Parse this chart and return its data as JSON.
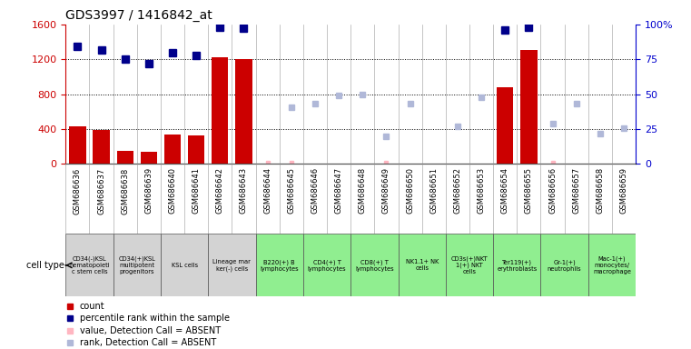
{
  "title": "GDS3997 / 1416842_at",
  "samples": [
    "GSM686636",
    "GSM686637",
    "GSM686638",
    "GSM686639",
    "GSM686640",
    "GSM686641",
    "GSM686642",
    "GSM686643",
    "GSM686644",
    "GSM686645",
    "GSM686646",
    "GSM686647",
    "GSM686648",
    "GSM686649",
    "GSM686650",
    "GSM686651",
    "GSM686652",
    "GSM686653",
    "GSM686654",
    "GSM686655",
    "GSM686656",
    "GSM686657",
    "GSM686658",
    "GSM686659"
  ],
  "counts": [
    430,
    390,
    155,
    145,
    340,
    330,
    1220,
    1205,
    0,
    0,
    0,
    0,
    0,
    0,
    0,
    0,
    0,
    0,
    880,
    1310,
    0,
    0,
    0,
    0
  ],
  "pct_ranks_present": {
    "0": 84,
    "1": 82,
    "2": 75,
    "3": 72,
    "4": 80,
    "5": 78,
    "6": 98,
    "7": 97,
    "18": 96,
    "19": 98
  },
  "absent_ranks": {
    "9": 41,
    "10": 43,
    "11": 49,
    "12": 50,
    "13": 20,
    "14": 43,
    "16": 27,
    "17": 48,
    "20": 29,
    "21": 43,
    "22": 22,
    "23": 26
  },
  "absent_values_idx": [
    8,
    9,
    13,
    20
  ],
  "cell_types": [
    {
      "label": "CD34(-)KSL\nhematopoieti\nc stem cells",
      "color": "#d3d3d3",
      "span": [
        0,
        1
      ]
    },
    {
      "label": "CD34(+)KSL\nmultipotent\nprogenitors",
      "color": "#d3d3d3",
      "span": [
        2,
        3
      ]
    },
    {
      "label": "KSL cells",
      "color": "#d3d3d3",
      "span": [
        4,
        5
      ]
    },
    {
      "label": "Lineage mar\nker(-) cells",
      "color": "#d3d3d3",
      "span": [
        6,
        7
      ]
    },
    {
      "label": "B220(+) B\nlymphocytes",
      "color": "#90ee90",
      "span": [
        8,
        9
      ]
    },
    {
      "label": "CD4(+) T\nlymphocytes",
      "color": "#90ee90",
      "span": [
        10,
        11
      ]
    },
    {
      "label": "CD8(+) T\nlymphocytes",
      "color": "#90ee90",
      "span": [
        12,
        13
      ]
    },
    {
      "label": "NK1.1+ NK\ncells",
      "color": "#90ee90",
      "span": [
        14,
        15
      ]
    },
    {
      "label": "CD3s(+)NKT\n1(+) NKT\ncells",
      "color": "#90ee90",
      "span": [
        16,
        17
      ]
    },
    {
      "label": "Ter119(+)\nerythroblasts",
      "color": "#90ee90",
      "span": [
        18,
        19
      ]
    },
    {
      "label": "Gr-1(+)\nneutrophils",
      "color": "#90ee90",
      "span": [
        20,
        21
      ]
    },
    {
      "label": "Mac-1(+)\nmonocytes/\nmacrophage",
      "color": "#90ee90",
      "span": [
        22,
        23
      ]
    }
  ],
  "bar_color": "#cc0000",
  "rank_color": "#00008b",
  "absent_value_color": "#ffb6c1",
  "absent_rank_color": "#b0b8d8",
  "ylim_left": [
    0,
    1600
  ],
  "ylim_right": [
    0,
    100
  ],
  "yticks_left": [
    0,
    400,
    800,
    1200,
    1600
  ],
  "yticks_right": [
    0,
    25,
    50,
    75,
    100
  ],
  "bg_color": "#ffffff"
}
